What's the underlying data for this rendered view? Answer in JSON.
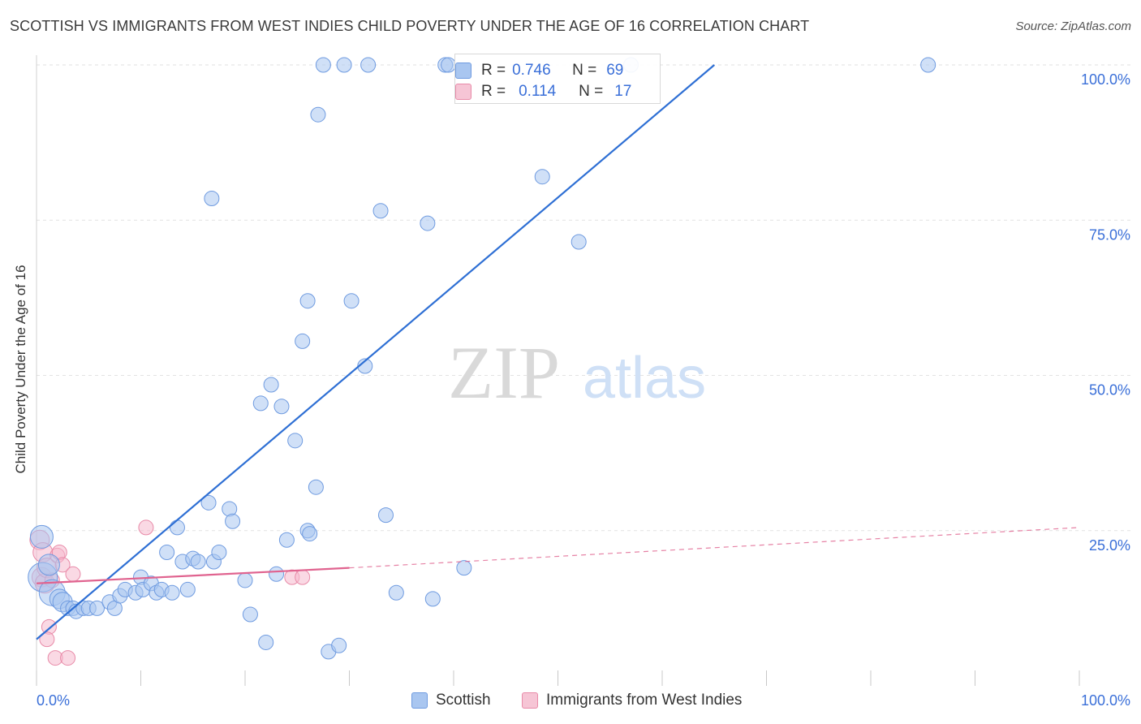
{
  "title": "SCOTTISH VS IMMIGRANTS FROM WEST INDIES CHILD POVERTY UNDER THE AGE OF 16 CORRELATION CHART",
  "source": "Source: ZipAtlas.com",
  "watermark": {
    "zip": "ZIP",
    "atlas": "atlas"
  },
  "legend_top": {
    "rows": [
      {
        "r_label": "R =",
        "r_value": "0.746",
        "n_label": "N =",
        "n_value": "69"
      },
      {
        "r_label": "R =",
        "r_value": "0.114",
        "n_label": "N =",
        "n_value": "17"
      }
    ]
  },
  "legend_bottom": {
    "items": [
      {
        "label": "Scottish"
      },
      {
        "label": "Immigrants from West Indies"
      }
    ]
  },
  "chart_data": {
    "type": "scatter",
    "title": "SCOTTISH VS IMMIGRANTS FROM WEST INDIES CHILD POVERTY UNDER THE AGE OF 16 CORRELATION CHART",
    "xlabel": "",
    "ylabel": "Child Poverty Under the Age of 16",
    "xlim": [
      0,
      100
    ],
    "ylim": [
      0,
      100
    ],
    "x_tick_labels": [
      "0.0%",
      "100.0%"
    ],
    "y_tick_labels": [
      "25.0%",
      "50.0%",
      "75.0%",
      "100.0%"
    ],
    "y_ticks": [
      25,
      50,
      75,
      100
    ],
    "grid": true,
    "legend_position": "bottom",
    "colors": {
      "scottish_fill": "#a9c6f0",
      "scottish_stroke": "#6f9be0",
      "scottish_line": "#2e6fd4",
      "wi_fill": "#f6b9cd",
      "wi_stroke": "#e88aa8",
      "wi_line": "#e0638f",
      "axis_text": "#3a6fd8"
    },
    "series": [
      {
        "name": "Scottish",
        "r": 0.746,
        "n": 69,
        "trend": {
          "x": [
            0,
            65
          ],
          "y": [
            7.5,
            100
          ]
        },
        "points": [
          [
            0.5,
            24.0
          ],
          [
            0.6,
            17.5
          ],
          [
            1.2,
            19.5
          ],
          [
            1.5,
            15.0
          ],
          [
            2.2,
            14.0
          ],
          [
            2.5,
            13.5
          ],
          [
            3.0,
            12.5
          ],
          [
            3.5,
            12.5
          ],
          [
            3.8,
            12.0
          ],
          [
            4.5,
            12.5
          ],
          [
            5.0,
            12.5
          ],
          [
            5.8,
            12.5
          ],
          [
            7.0,
            13.5
          ],
          [
            7.5,
            12.5
          ],
          [
            8.0,
            14.5
          ],
          [
            8.5,
            15.5
          ],
          [
            9.5,
            15.0
          ],
          [
            10.0,
            17.5
          ],
          [
            10.2,
            15.5
          ],
          [
            11.0,
            16.5
          ],
          [
            11.5,
            15.0
          ],
          [
            12.0,
            15.5
          ],
          [
            12.5,
            21.5
          ],
          [
            13.0,
            15.0
          ],
          [
            13.5,
            25.5
          ],
          [
            14.0,
            20.0
          ],
          [
            14.5,
            15.5
          ],
          [
            15.0,
            20.5
          ],
          [
            15.5,
            20.0
          ],
          [
            16.5,
            29.5
          ],
          [
            17.0,
            20.0
          ],
          [
            17.5,
            21.5
          ],
          [
            18.5,
            28.5
          ],
          [
            18.8,
            26.5
          ],
          [
            20.0,
            17.0
          ],
          [
            20.5,
            11.5
          ],
          [
            16.8,
            78.5
          ],
          [
            21.5,
            45.5
          ],
          [
            22.0,
            7.0
          ],
          [
            22.5,
            48.5
          ],
          [
            23.0,
            18.0
          ],
          [
            23.5,
            45.0
          ],
          [
            24.0,
            23.5
          ],
          [
            24.8,
            39.5
          ],
          [
            25.5,
            55.5
          ],
          [
            26.0,
            25.0
          ],
          [
            26.2,
            24.5
          ],
          [
            26.8,
            32.0
          ],
          [
            27.0,
            92.0
          ],
          [
            28.0,
            5.5
          ],
          [
            29.0,
            6.5
          ],
          [
            26.0,
            62.0
          ],
          [
            27.5,
            100.0
          ],
          [
            29.5,
            100.0
          ],
          [
            30.2,
            62.0
          ],
          [
            31.5,
            51.5
          ],
          [
            31.8,
            100.0
          ],
          [
            33.0,
            76.5
          ],
          [
            33.5,
            27.5
          ],
          [
            39.2,
            100.0
          ],
          [
            39.5,
            100.0
          ],
          [
            34.5,
            15.0
          ],
          [
            37.5,
            74.5
          ],
          [
            38.0,
            14.0
          ],
          [
            41.0,
            19.0
          ],
          [
            48.5,
            82.0
          ],
          [
            52.0,
            71.5
          ],
          [
            57.0,
            100.0
          ],
          [
            85.5,
            100.0
          ]
        ],
        "point_note": "Recreated from visual estimate"
      },
      {
        "name": "Immigrants from West Indies",
        "r": 0.114,
        "n": 17,
        "trend": {
          "x": [
            0,
            30
          ],
          "y": [
            16.5,
            19.0
          ]
        },
        "trend_ext": {
          "x": [
            30,
            100
          ],
          "y": [
            19.0,
            25.5
          ]
        },
        "points": [
          [
            0.3,
            23.5
          ],
          [
            0.5,
            17.5
          ],
          [
            0.6,
            21.5
          ],
          [
            0.8,
            16.5
          ],
          [
            1.0,
            19.0
          ],
          [
            1.2,
            9.5
          ],
          [
            1.0,
            7.5
          ],
          [
            1.5,
            17.0
          ],
          [
            1.8,
            4.5
          ],
          [
            2.0,
            21.0
          ],
          [
            2.2,
            21.5
          ],
          [
            2.5,
            19.5
          ],
          [
            3.0,
            4.5
          ],
          [
            3.5,
            18.0
          ],
          [
            10.5,
            25.5
          ],
          [
            24.5,
            17.5
          ],
          [
            25.5,
            17.5
          ]
        ]
      }
    ]
  }
}
